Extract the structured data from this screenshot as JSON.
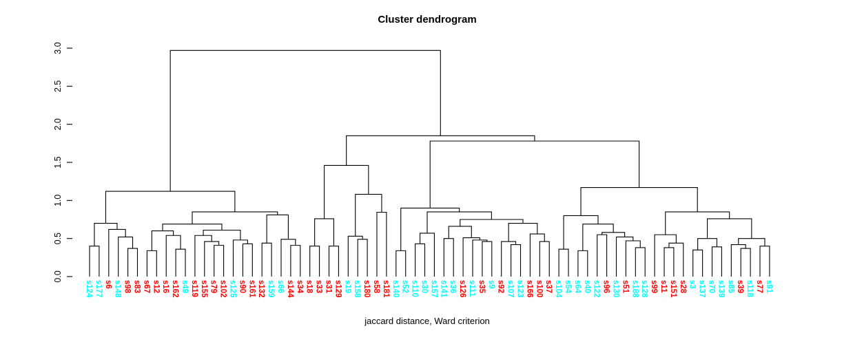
{
  "chart_data": {
    "type": "dendrogram",
    "title": "Cluster dendrogram",
    "caption": "jaccard distance, Ward criterion",
    "y_axis": {
      "ticks": [
        0,
        0.5,
        1,
        1.5,
        2,
        2.5,
        3
      ],
      "tick_labels": [
        "0.0",
        "0.5",
        "1.0",
        "1.5",
        "2.0",
        "2.5",
        "3.0"
      ],
      "range": [
        0,
        3
      ],
      "grid": false
    },
    "palette": {
      "cyan": "#00FFFF",
      "red": "#FF0000",
      "line": "#000000"
    },
    "leaves": [
      {
        "label": "s124",
        "color": "cyan"
      },
      {
        "label": "s177",
        "color": "cyan"
      },
      {
        "label": "s6",
        "color": "red"
      },
      {
        "label": "s148",
        "color": "cyan"
      },
      {
        "label": "s98",
        "color": "red"
      },
      {
        "label": "s83",
        "color": "red"
      },
      {
        "label": "s67",
        "color": "red"
      },
      {
        "label": "s12",
        "color": "red"
      },
      {
        "label": "s16",
        "color": "red"
      },
      {
        "label": "s162",
        "color": "red"
      },
      {
        "label": "s49",
        "color": "cyan"
      },
      {
        "label": "s119",
        "color": "red"
      },
      {
        "label": "s155",
        "color": "red"
      },
      {
        "label": "s79",
        "color": "red"
      },
      {
        "label": "s102",
        "color": "red"
      },
      {
        "label": "s125",
        "color": "cyan"
      },
      {
        "label": "s90",
        "color": "red"
      },
      {
        "label": "s161",
        "color": "red"
      },
      {
        "label": "s132",
        "color": "red"
      },
      {
        "label": "s159",
        "color": "cyan"
      },
      {
        "label": "s66",
        "color": "cyan"
      },
      {
        "label": "s144",
        "color": "red"
      },
      {
        "label": "s34",
        "color": "red"
      },
      {
        "label": "s18",
        "color": "red"
      },
      {
        "label": "s33",
        "color": "red"
      },
      {
        "label": "s31",
        "color": "red"
      },
      {
        "label": "s129",
        "color": "red"
      },
      {
        "label": "s19",
        "color": "cyan"
      },
      {
        "label": "s158",
        "color": "cyan"
      },
      {
        "label": "s180",
        "color": "red"
      },
      {
        "label": "s58",
        "color": "red"
      },
      {
        "label": "s181",
        "color": "red"
      },
      {
        "label": "s140",
        "color": "cyan"
      },
      {
        "label": "s52",
        "color": "cyan"
      },
      {
        "label": "s110",
        "color": "cyan"
      },
      {
        "label": "s30",
        "color": "cyan"
      },
      {
        "label": "s157",
        "color": "cyan"
      },
      {
        "label": "s141",
        "color": "cyan"
      },
      {
        "label": "s36",
        "color": "cyan"
      },
      {
        "label": "s126",
        "color": "red"
      },
      {
        "label": "s111",
        "color": "cyan"
      },
      {
        "label": "s35",
        "color": "red"
      },
      {
        "label": "s9",
        "color": "cyan"
      },
      {
        "label": "s92",
        "color": "red"
      },
      {
        "label": "s107",
        "color": "cyan"
      },
      {
        "label": "s123",
        "color": "cyan"
      },
      {
        "label": "s166",
        "color": "red"
      },
      {
        "label": "s100",
        "color": "red"
      },
      {
        "label": "s37",
        "color": "red"
      },
      {
        "label": "s104",
        "color": "cyan"
      },
      {
        "label": "s54",
        "color": "cyan"
      },
      {
        "label": "s64",
        "color": "cyan"
      },
      {
        "label": "s40",
        "color": "cyan"
      },
      {
        "label": "s122",
        "color": "cyan"
      },
      {
        "label": "s96",
        "color": "red"
      },
      {
        "label": "s130",
        "color": "cyan"
      },
      {
        "label": "s51",
        "color": "red"
      },
      {
        "label": "s188",
        "color": "cyan"
      },
      {
        "label": "s128",
        "color": "cyan"
      },
      {
        "label": "s99",
        "color": "red"
      },
      {
        "label": "s11",
        "color": "red"
      },
      {
        "label": "s151",
        "color": "red"
      },
      {
        "label": "s28",
        "color": "red"
      },
      {
        "label": "s3",
        "color": "cyan"
      },
      {
        "label": "s137",
        "color": "cyan"
      },
      {
        "label": "s70",
        "color": "cyan"
      },
      {
        "label": "s139",
        "color": "cyan"
      },
      {
        "label": "s85",
        "color": "cyan"
      },
      {
        "label": "s39",
        "color": "red"
      },
      {
        "label": "s118",
        "color": "cyan"
      },
      {
        "label": "s77",
        "color": "red"
      },
      {
        "label": "s91",
        "color": "cyan"
      }
    ],
    "merges": [
      2.97,
      [
        1.12,
        [
          0.7,
          [
            0.4,
            0,
            1
          ],
          [
            0.62,
            2,
            [
              0.52,
              3,
              [
                0.37,
                4,
                5
              ]
            ]
          ]
        ],
        [
          0.85,
          [
            0.69,
            [
              0.6,
              [
                0.34,
                6,
                7
              ],
              [
                0.54,
                8,
                [
                  0.36,
                  9,
                  10
                ]
              ]
            ],
            [
              0.61,
              [
                0.54,
                11,
                [
                  0.46,
                  12,
                  [
                    0.41,
                    13,
                    14
                  ]
                ]
              ],
              [
                0.48,
                15,
                [
                  0.43,
                  16,
                  17
                ]
              ]
            ]
          ],
          [
            0.81,
            [
              0.44,
              18,
              19
            ],
            [
              0.49,
              20,
              [
                0.41,
                21,
                22
              ]
            ]
          ]
        ]
      ],
      [
        1.85,
        [
          1.46,
          [
            0.76,
            [
              0.4,
              23,
              24
            ],
            [
              0.4,
              25,
              26
            ]
          ],
          [
            1.08,
            [
              0.53,
              27,
              [
                0.49,
                28,
                29
              ]
            ],
            [
              0.845,
              30,
              31
            ]
          ]
        ],
        [
          1.78,
          [
            0.9,
            [
              0.34,
              32,
              33
            ],
            [
              0.85,
              [
                0.57,
                [
                  0.43,
                  34,
                  35
                ],
                36
              ],
              [
                0.75,
                [
                  0.66,
                  [
                    0.5,
                    37,
                    38
                  ],
                  [
                    0.51,
                    39,
                    [
                      0.48,
                      40,
                      [
                        0.46,
                        41,
                        42
                      ]
                    ]
                  ]
                ],
                [
                  0.7,
                  [
                    0.46,
                    43,
                    [
                      0.42,
                      44,
                      45
                    ]
                  ],
                  [
                    0.56,
                    46,
                    [
                      0.46,
                      47,
                      48
                    ]
                  ]
                ]
              ]
            ]
          ],
          [
            1.17,
            [
              0.8,
              [
                0.36,
                49,
                50
              ],
              [
                0.69,
                [
                  0.34,
                  51,
                  52
                ],
                [
                  0.58,
                  [
                    0.55,
                    53,
                    54
                  ],
                  [
                    0.52,
                    55,
                    [
                      0.47,
                      56,
                      [
                        0.38,
                        57,
                        58
                      ]
                    ]
                  ]
                ]
              ]
            ],
            [
              0.85,
              [
                0.55,
                59,
                [
                  0.44,
                  [
                    0.38,
                    60,
                    61
                  ],
                  62
                ]
              ],
              [
                0.76,
                [
                  0.5,
                  [
                    0.35,
                    63,
                    64
                  ],
                  [
                    0.39,
                    65,
                    66
                  ]
                ],
                [
                  0.5,
                  [
                    0.42,
                    67,
                    [
                      0.37,
                      68,
                      69
                    ]
                  ],
                  [
                    0.4,
                    70,
                    71
                  ]
                ]
              ]
            ]
          ]
        ]
      ]
    ]
  }
}
